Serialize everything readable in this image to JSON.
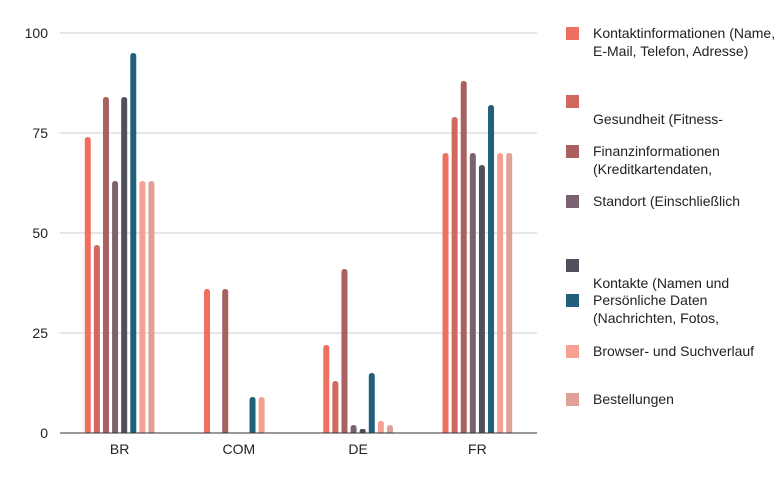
{
  "chart_data": {
    "type": "bar",
    "categories": [
      "BR",
      "COM",
      "DE",
      "FR"
    ],
    "ylim": [
      0,
      100
    ],
    "yticks": [
      0,
      25,
      50,
      75,
      100
    ],
    "grid": true,
    "legend_position": "right",
    "series": [
      {
        "name": "Kontaktinformationen (Name, E-Mail, Telefon, Adresse)",
        "color": "#f07060",
        "values": [
          74,
          36,
          22,
          70
        ]
      },
      {
        "name": "Gesundheit (Fitness-",
        "color": "#d06860",
        "values": [
          47,
          0,
          13,
          79
        ]
      },
      {
        "name": "Finanzinformationen (Kreditkartendaten,",
        "color": "#a86060",
        "values": [
          84,
          36,
          41,
          88
        ]
      },
      {
        "name": "Standort (Einschließlich",
        "color": "#7a6270",
        "values": [
          63,
          0,
          2,
          70
        ]
      },
      {
        "name": "Kontakte (Namen und",
        "color": "#50505c",
        "values": [
          84,
          0,
          1,
          67
        ]
      },
      {
        "name": "Persönliche Daten (Nachrichten, Fotos,",
        "color": "#225f7c",
        "values": [
          95,
          9,
          15,
          82
        ]
      },
      {
        "name": "Browser- und Suchverlauf",
        "color": "#f5a090",
        "values": [
          63,
          9,
          3,
          70
        ]
      },
      {
        "name": "Bestellungen",
        "color": "#dfa098",
        "values": [
          63,
          0,
          2,
          70
        ]
      }
    ]
  }
}
